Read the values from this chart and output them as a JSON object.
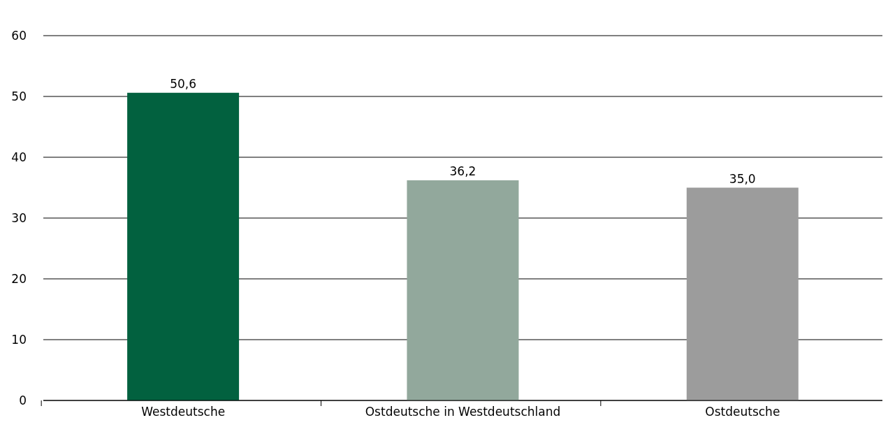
{
  "chart_data": {
    "type": "bar",
    "categories": [
      "Westdeutsche",
      "Ostdeutsche in Westdeutschland",
      "Ostdeutsche"
    ],
    "values": [
      50.6,
      36.2,
      35.0
    ],
    "value_labels": [
      "50,6",
      "36,2",
      "35,0"
    ],
    "colors": [
      "#02613f",
      "#92a89c",
      "#9c9c9c"
    ],
    "ylim": [
      0,
      60
    ],
    "yticks": [
      0,
      10,
      20,
      30,
      40,
      50,
      60
    ],
    "grid": "y",
    "legend": false
  }
}
